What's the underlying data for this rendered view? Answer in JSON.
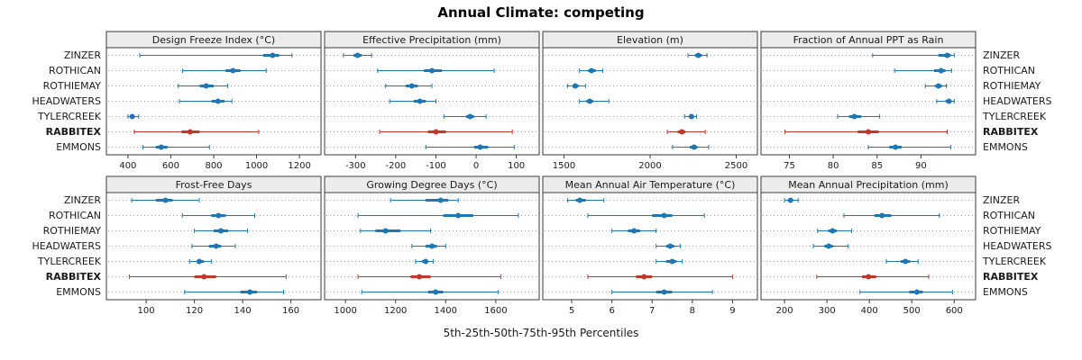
{
  "title": "Annual Climate: competing",
  "caption": "5th-25th-50th-75th-95th Percentiles",
  "colors": {
    "series": "#1f77b4",
    "highlight": "#c0392b",
    "grid": "#9a9a9a",
    "border": "#3a3a3a",
    "strip_bg": "#ececec",
    "text": "#1a1a1a"
  },
  "chart_data": {
    "type": "dot-interval-trellis",
    "percentiles": [
      5,
      25,
      50,
      75,
      95
    ],
    "sites": [
      "ZINZER",
      "ROTHICAN",
      "ROTHIEMAY",
      "HEADWATERS",
      "TYLERCREEK",
      "RABBITEX",
      "EMMONS"
    ],
    "highlight_site": "RABBITEX",
    "layout": {
      "rows": 2,
      "cols": 4,
      "grid": "dotted",
      "legend": "none"
    },
    "panels": [
      {
        "title": "Design Freeze Index (°C)",
        "ticks": [
          400,
          600,
          800,
          1000,
          1200
        ],
        "domain": [
          350,
          1250
        ],
        "values": [
          [
            455,
            1030,
            1075,
            1105,
            1165
          ],
          [
            655,
            855,
            890,
            925,
            1045
          ],
          [
            635,
            735,
            765,
            800,
            865
          ],
          [
            640,
            790,
            820,
            850,
            885
          ],
          [
            400,
            410,
            420,
            430,
            450
          ],
          [
            430,
            650,
            690,
            735,
            1010
          ],
          [
            470,
            530,
            555,
            585,
            780
          ]
        ]
      },
      {
        "title": "Effective Precipitation (mm)",
        "ticks": [
          -300,
          -200,
          -100,
          0,
          100
        ],
        "domain": [
          -350,
          130
        ],
        "values": [
          [
            -330,
            -305,
            -295,
            -285,
            -260
          ],
          [
            -245,
            -130,
            -110,
            -85,
            45
          ],
          [
            -225,
            -175,
            -160,
            -145,
            -110
          ],
          [
            -215,
            -155,
            -140,
            -125,
            -100
          ],
          [
            -80,
            -25,
            -15,
            -5,
            25
          ],
          [
            -240,
            -120,
            -100,
            -75,
            90
          ],
          [
            -125,
            -5,
            10,
            30,
            95
          ]
        ]
      },
      {
        "title": "Elevation (m)",
        "ticks": [
          1500,
          2000,
          2500
        ],
        "domain": [
          1440,
          2560
        ],
        "values": [
          [
            2220,
            2260,
            2280,
            2300,
            2330
          ],
          [
            1590,
            1640,
            1660,
            1685,
            1725
          ],
          [
            1520,
            1550,
            1565,
            1585,
            1625
          ],
          [
            1590,
            1630,
            1650,
            1670,
            1760
          ],
          [
            2200,
            2230,
            2240,
            2255,
            2270
          ],
          [
            2100,
            2160,
            2185,
            2205,
            2320
          ],
          [
            2130,
            2230,
            2255,
            2275,
            2340
          ]
        ]
      },
      {
        "title": "Fraction of Annual PPT as Rain",
        "ticks": [
          75,
          80,
          85,
          90
        ],
        "domain": [
          73,
          95
        ],
        "values": [
          [
            84.5,
            92.0,
            93.0,
            93.4,
            93.8
          ],
          [
            87.0,
            91.5,
            92.3,
            92.8,
            93.5
          ],
          [
            90.5,
            91.6,
            92.0,
            92.4,
            92.9
          ],
          [
            91.8,
            92.8,
            93.2,
            93.5,
            93.8
          ],
          [
            80.5,
            81.8,
            82.4,
            83.2,
            85.3
          ],
          [
            74.5,
            82.8,
            84.0,
            85.2,
            93.0
          ],
          [
            84.0,
            86.4,
            87.1,
            87.8,
            93.4
          ]
        ]
      },
      {
        "title": "Frost-Free Days",
        "ticks": [
          100,
          120,
          140,
          160
        ],
        "domain": [
          88,
          168
        ],
        "values": [
          [
            94,
            104,
            108,
            111,
            122
          ],
          [
            115,
            127,
            130,
            133,
            145
          ],
          [
            120,
            128,
            131,
            134,
            142
          ],
          [
            119,
            126,
            129,
            131,
            137
          ],
          [
            118,
            121,
            122,
            124,
            127
          ],
          [
            93,
            120,
            124,
            129,
            158
          ],
          [
            116,
            139,
            143,
            146,
            157
          ]
        ]
      },
      {
        "title": "Growing Degree Days (°C)",
        "ticks": [
          1000,
          1200,
          1400,
          1600
        ],
        "domain": [
          960,
          1730
        ],
        "values": [
          [
            1180,
            1320,
            1380,
            1410,
            1450
          ],
          [
            1050,
            1390,
            1450,
            1510,
            1690
          ],
          [
            1060,
            1120,
            1160,
            1220,
            1340
          ],
          [
            1265,
            1320,
            1345,
            1365,
            1400
          ],
          [
            1280,
            1305,
            1320,
            1330,
            1350
          ],
          [
            1050,
            1260,
            1295,
            1340,
            1620
          ],
          [
            1065,
            1330,
            1360,
            1390,
            1610
          ]
        ]
      },
      {
        "title": "Mean Annual Air Temperature (°C)",
        "ticks": [
          5,
          6,
          7,
          8,
          9
        ],
        "domain": [
          4.55,
          9.35
        ],
        "values": [
          [
            4.9,
            5.1,
            5.2,
            5.35,
            5.8
          ],
          [
            5.4,
            7.0,
            7.3,
            7.5,
            8.3
          ],
          [
            6.0,
            6.4,
            6.55,
            6.7,
            7.1
          ],
          [
            7.1,
            7.35,
            7.45,
            7.55,
            7.7
          ],
          [
            7.1,
            7.35,
            7.5,
            7.6,
            7.75
          ],
          [
            5.4,
            6.6,
            6.8,
            7.0,
            9.0
          ],
          [
            6.0,
            7.1,
            7.3,
            7.5,
            8.5
          ]
        ]
      },
      {
        "title": "Mean Annual Precipitation (mm)",
        "ticks": [
          200,
          300,
          400,
          500,
          600
        ],
        "domain": [
          170,
          625
        ],
        "values": [
          [
            200,
            208,
            214,
            220,
            232
          ],
          [
            340,
            412,
            430,
            452,
            565
          ],
          [
            278,
            303,
            313,
            323,
            358
          ],
          [
            268,
            294,
            304,
            314,
            350
          ],
          [
            440,
            474,
            485,
            496,
            515
          ],
          [
            276,
            383,
            398,
            416,
            540
          ],
          [
            378,
            494,
            512,
            526,
            596
          ]
        ]
      }
    ]
  }
}
